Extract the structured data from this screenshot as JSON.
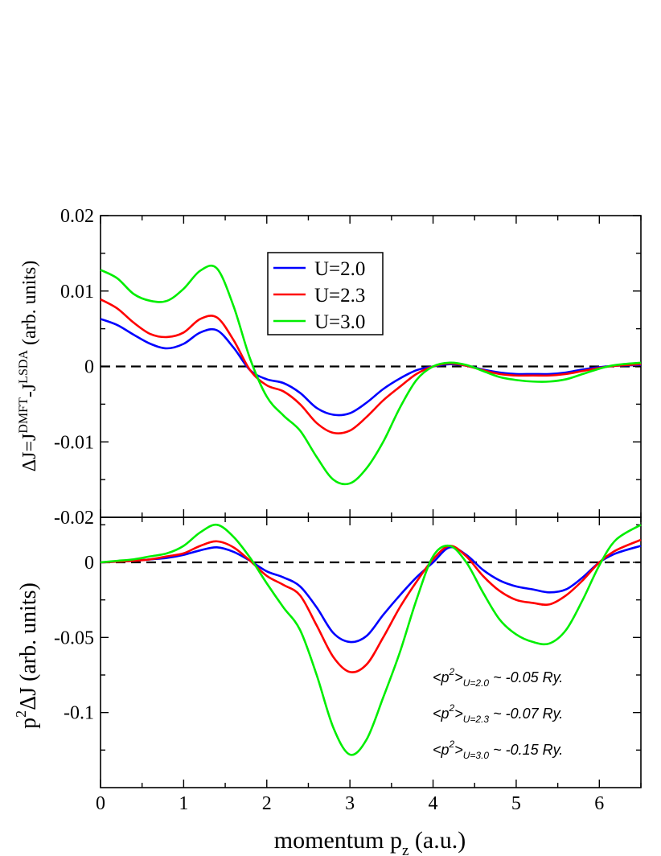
{
  "chart_data": [
    {
      "type": "line",
      "panel": "top",
      "ylabel_parts": [
        "ΔJ=J",
        "DMFT",
        "-J",
        "LSDA",
        " (arb. units)"
      ],
      "xlim": [
        0,
        6.5
      ],
      "ylim": [
        -0.02,
        0.02
      ],
      "yticks": [
        -0.02,
        -0.01,
        0,
        0.01,
        0.02
      ],
      "ytick_labels": [
        "-0.02",
        "-0.01",
        "0",
        "0.01",
        "0.02"
      ],
      "zero_line": "dashed",
      "legend": {
        "placement": "top-center",
        "entries": [
          "U=2.0",
          "U=2.3",
          "U=3.0"
        ]
      },
      "x": [
        0,
        0.2,
        0.4,
        0.6,
        0.8,
        1.0,
        1.2,
        1.4,
        1.6,
        1.8,
        2.0,
        2.2,
        2.4,
        2.6,
        2.8,
        3.0,
        3.2,
        3.4,
        3.6,
        3.8,
        4.0,
        4.2,
        4.4,
        4.6,
        4.8,
        5.0,
        5.2,
        5.4,
        5.6,
        5.8,
        6.0,
        6.2,
        6.5
      ],
      "series": [
        {
          "name": "U=2.0",
          "color": "#0000ff",
          "values": [
            0.0063,
            0.0055,
            0.0042,
            0.003,
            0.0024,
            0.003,
            0.0045,
            0.0048,
            0.0025,
            -0.0005,
            -0.0017,
            -0.0022,
            -0.0035,
            -0.0055,
            -0.0064,
            -0.0062,
            -0.0048,
            -0.003,
            -0.0016,
            -0.0005,
            0.0,
            0.0003,
            0.0001,
            -0.0004,
            -0.0008,
            -0.001,
            -0.001,
            -0.001,
            -0.0008,
            -0.0004,
            -0.0001,
            0.0001,
            0.0002
          ]
        },
        {
          "name": "U=2.3",
          "color": "#ff0000",
          "values": [
            0.0089,
            0.0077,
            0.0058,
            0.0043,
            0.0039,
            0.0045,
            0.0063,
            0.0065,
            0.0035,
            -0.0005,
            -0.0025,
            -0.0033,
            -0.005,
            -0.0075,
            -0.0088,
            -0.0085,
            -0.0067,
            -0.0045,
            -0.0027,
            -0.001,
            0.0,
            0.0004,
            0.0001,
            -0.0005,
            -0.001,
            -0.0012,
            -0.0012,
            -0.0012,
            -0.001,
            -0.0006,
            -0.0002,
            0.0001,
            0.0003
          ]
        },
        {
          "name": "U=3.0",
          "color": "#00ee00",
          "values": [
            0.0128,
            0.0117,
            0.0096,
            0.0087,
            0.0087,
            0.0103,
            0.0127,
            0.013,
            0.008,
            0.001,
            -0.004,
            -0.0065,
            -0.0085,
            -0.012,
            -0.015,
            -0.0155,
            -0.0135,
            -0.01,
            -0.0055,
            -0.0018,
            0.0,
            0.0005,
            0.0002,
            -0.0006,
            -0.0014,
            -0.0018,
            -0.002,
            -0.002,
            -0.0017,
            -0.001,
            -0.0003,
            0.0002,
            0.0005
          ]
        }
      ]
    },
    {
      "type": "line",
      "panel": "bottom",
      "ylabel_parts": [
        "p",
        "2",
        "ΔJ (arb. units)"
      ],
      "xlabel_parts": [
        "momentum p",
        "z",
        "  (a.u.)"
      ],
      "xlim": [
        0,
        6.5
      ],
      "ylim": [
        -0.15,
        0.03
      ],
      "xticks": [
        0,
        1,
        2,
        3,
        4,
        5,
        6
      ],
      "xtick_labels": [
        "0",
        "1",
        "2",
        "3",
        "4",
        "5",
        "6"
      ],
      "yticks": [
        -0.1,
        -0.05,
        0
      ],
      "ytick_labels": [
        "-0.1",
        "-0.05",
        "0"
      ],
      "zero_line": "dashed",
      "x": [
        0,
        0.2,
        0.4,
        0.6,
        0.8,
        1.0,
        1.2,
        1.4,
        1.6,
        1.8,
        2.0,
        2.2,
        2.4,
        2.6,
        2.8,
        3.0,
        3.2,
        3.4,
        3.6,
        3.8,
        4.0,
        4.2,
        4.4,
        4.6,
        4.8,
        5.0,
        5.2,
        5.4,
        5.6,
        5.8,
        6.0,
        6.2,
        6.5
      ],
      "series": [
        {
          "name": "U=2.0",
          "color": "#0000ff",
          "values": [
            0.0,
            0.0005,
            0.001,
            0.002,
            0.003,
            0.005,
            0.008,
            0.01,
            0.007,
            0.001,
            -0.006,
            -0.01,
            -0.016,
            -0.03,
            -0.047,
            -0.053,
            -0.049,
            -0.035,
            -0.022,
            -0.01,
            0.0,
            0.01,
            0.005,
            -0.005,
            -0.012,
            -0.016,
            -0.018,
            -0.02,
            -0.018,
            -0.01,
            0.0,
            0.006,
            0.011
          ]
        },
        {
          "name": "U=2.3",
          "color": "#ff0000",
          "values": [
            0.0,
            0.0005,
            0.001,
            0.002,
            0.004,
            0.006,
            0.011,
            0.014,
            0.01,
            0.001,
            -0.009,
            -0.015,
            -0.022,
            -0.042,
            -0.063,
            -0.073,
            -0.068,
            -0.05,
            -0.03,
            -0.013,
            0.002,
            0.011,
            0.004,
            -0.009,
            -0.019,
            -0.025,
            -0.027,
            -0.028,
            -0.022,
            -0.012,
            0.0,
            0.008,
            0.015
          ]
        },
        {
          "name": "U=3.0",
          "color": "#00ee00",
          "values": [
            0.0,
            0.001,
            0.002,
            0.004,
            0.006,
            0.011,
            0.02,
            0.025,
            0.017,
            0.003,
            -0.014,
            -0.03,
            -0.045,
            -0.075,
            -0.11,
            -0.128,
            -0.118,
            -0.09,
            -0.06,
            -0.025,
            0.004,
            0.011,
            0.0,
            -0.02,
            -0.038,
            -0.048,
            -0.053,
            -0.054,
            -0.045,
            -0.025,
            -0.002,
            0.015,
            0.025
          ]
        }
      ],
      "annotations": [
        {
          "pre": "<p",
          "sup": "2",
          "post": ">",
          "sub": "U=2.0",
          "value": " ~ -0.05 Ry."
        },
        {
          "pre": "<p",
          "sup": "2",
          "post": ">",
          "sub": "U=2.3",
          "value": " ~ -0.07 Ry."
        },
        {
          "pre": "<p",
          "sup": "2",
          "post": ">",
          "sub": "U=3.0",
          "value": " ~ -0.15 Ry."
        }
      ]
    }
  ]
}
